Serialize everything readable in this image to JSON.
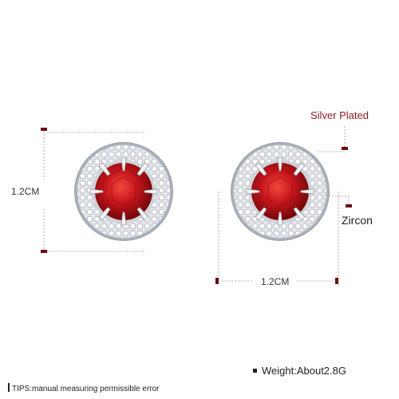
{
  "annotations": {
    "silver_plated": "Silver Plated",
    "zircon": "Zircon",
    "height": "1.2CM",
    "width": "1.2CM"
  },
  "footer": {
    "tips": "TIPS:manual measuring permissible error",
    "weight": "Weight:About2.8G"
  },
  "colors": {
    "stone_red": "#c0161c",
    "silver": "#d9dde2",
    "marker": "#6b0f12",
    "dash": "#9a9a9a"
  },
  "product": {
    "item": "round halo stud earrings",
    "count": 2
  }
}
